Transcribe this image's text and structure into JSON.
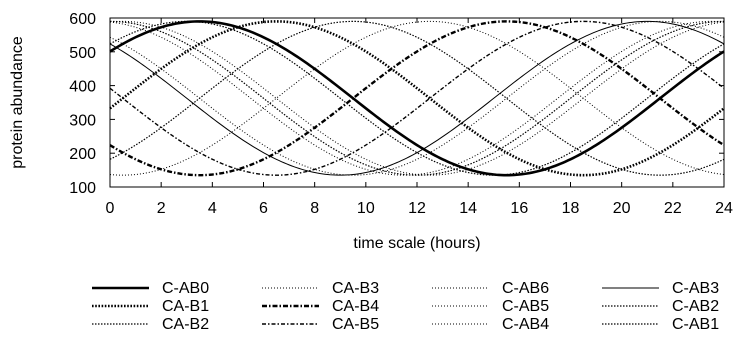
{
  "chart_data": {
    "type": "line",
    "title": "",
    "xlabel": "time scale (hours)",
    "ylabel": "protein abundance",
    "xlim": [
      0,
      24
    ],
    "ylim": [
      100,
      600
    ],
    "xticks": [
      0,
      2,
      4,
      6,
      8,
      10,
      12,
      14,
      16,
      18,
      20,
      22,
      24
    ],
    "yticks": [
      100,
      200,
      300,
      400,
      500,
      600
    ],
    "grid": false,
    "legend_position": "bottom",
    "legend_columns": 4,
    "waveform": {
      "period": 24,
      "mean": 362.5,
      "amplitude": 227.5
    },
    "series": [
      {
        "name": "C-AB0",
        "peak_time": 3.5,
        "style": "bold-solid"
      },
      {
        "name": "CA-B1",
        "peak_time": 6.5,
        "style": "bold-dotted"
      },
      {
        "name": "CA-B2",
        "peak_time": 9.5,
        "style": "dotted"
      },
      {
        "name": "CA-B3",
        "peak_time": 12.5,
        "style": "fine-dotted"
      },
      {
        "name": "CA-B4",
        "peak_time": 15.5,
        "style": "bold-dash-dot"
      },
      {
        "name": "CA-B5",
        "peak_time": 18.5,
        "style": "dash-dot"
      },
      {
        "name": "C-AB6",
        "peak_time": 21.5,
        "style": "fine-dotted"
      },
      {
        "name": "C-AB5",
        "peak_time": 0.5,
        "style": "fine-dotted"
      },
      {
        "name": "C-AB4",
        "peak_time": 23.5,
        "style": "fine-dotted"
      },
      {
        "name": "C-AB3",
        "peak_time": 21.0,
        "style": "thin-solid"
      },
      {
        "name": "C-AB2",
        "peak_time": 0.0,
        "style": "dotted"
      },
      {
        "name": "C-AB1",
        "peak_time": 3.0,
        "style": "dotted"
      }
    ]
  }
}
